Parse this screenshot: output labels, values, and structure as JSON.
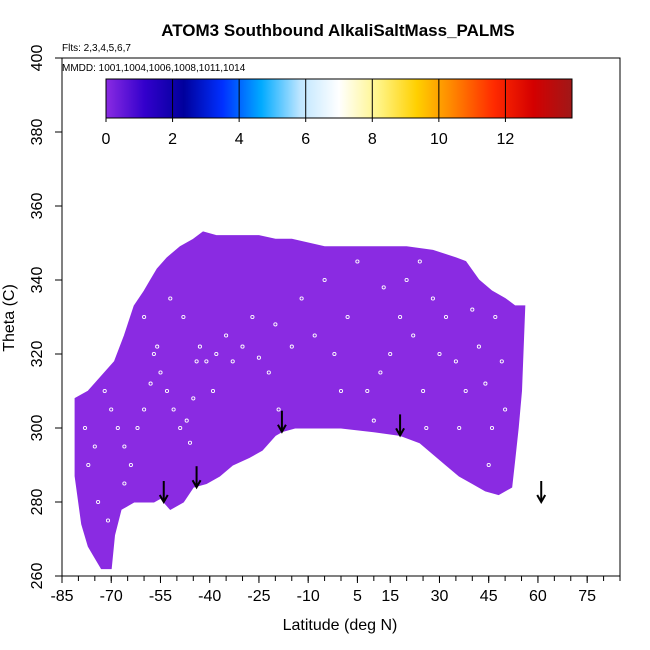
{
  "chart_data": {
    "type": "scatter",
    "title": "ATOM3 Southbound AlkaliSaltMass_PALMS",
    "flights_label": "Flts: 2,3,4,5,6,7",
    "mmdd_label": "MMDD: 1001,1004,1006,1008,1011,1014",
    "xlabel": "Latitude (deg N)",
    "ylabel": "Theta (C)",
    "xlim": [
      -85,
      85
    ],
    "ylim": [
      260,
      400
    ],
    "x_ticks": [
      -85,
      -70,
      -55,
      -40,
      -25,
      -10,
      5,
      15,
      30,
      45,
      60,
      75
    ],
    "x_tick_labels": [
      "-85",
      "-70",
      "-55",
      "-40",
      "-25",
      "-10",
      "5",
      "15",
      "30",
      "45",
      "60",
      "75"
    ],
    "y_ticks": [
      260,
      280,
      300,
      320,
      340,
      360,
      380,
      400
    ],
    "y_tick_labels": [
      "260",
      "280",
      "300",
      "320",
      "340",
      "360",
      "380",
      "400"
    ],
    "colorbar": {
      "range": [
        0,
        14
      ],
      "ticks": [
        0,
        2,
        4,
        6,
        8,
        10,
        12
      ],
      "tick_labels": [
        "0",
        "2",
        "4",
        "6",
        "8",
        "10",
        "12"
      ],
      "colors": [
        "#8a2be2",
        "#3300cc",
        "#00009c",
        "#0030ff",
        "#00aaff",
        "#bfe6ff",
        "#ffffff",
        "#fff58a",
        "#ffd000",
        "#ff7f00",
        "#ff2a00",
        "#d40000",
        "#a01818"
      ]
    },
    "field_color": "#8a2be2",
    "field_value_approx": 0,
    "coverage_outline": [
      [
        -81,
        308
      ],
      [
        -81,
        287
      ],
      [
        -79,
        274
      ],
      [
        -77,
        268
      ],
      [
        -75,
        265
      ],
      [
        -73,
        262
      ],
      [
        -70,
        262
      ],
      [
        -69,
        271
      ],
      [
        -67,
        278
      ],
      [
        -63,
        280
      ],
      [
        -57,
        280
      ],
      [
        -55,
        281
      ],
      [
        -52,
        278
      ],
      [
        -48,
        280
      ],
      [
        -45,
        284
      ],
      [
        -41,
        285
      ],
      [
        -37,
        287
      ],
      [
        -33,
        290
      ],
      [
        -28,
        292
      ],
      [
        -24,
        294
      ],
      [
        -20,
        298
      ],
      [
        -18,
        299
      ],
      [
        -14,
        300
      ],
      [
        -10,
        300
      ],
      [
        0,
        300
      ],
      [
        10,
        299
      ],
      [
        18,
        298
      ],
      [
        24,
        296
      ],
      [
        28,
        293
      ],
      [
        32,
        290
      ],
      [
        36,
        287
      ],
      [
        40,
        285
      ],
      [
        44,
        283
      ],
      [
        48,
        282
      ],
      [
        52,
        284
      ],
      [
        53,
        292
      ],
      [
        54,
        300
      ],
      [
        55,
        310
      ],
      [
        56,
        333
      ],
      [
        53,
        333
      ],
      [
        50,
        335
      ],
      [
        46,
        337
      ],
      [
        42,
        340
      ],
      [
        38,
        345
      ],
      [
        35,
        346
      ],
      [
        28,
        348
      ],
      [
        20,
        349
      ],
      [
        10,
        349
      ],
      [
        0,
        349
      ],
      [
        -5,
        349
      ],
      [
        -15,
        351
      ],
      [
        -20,
        351
      ],
      [
        -25,
        352
      ],
      [
        -30,
        352
      ],
      [
        -38,
        352
      ],
      [
        -42,
        353
      ],
      [
        -45,
        351
      ],
      [
        -49,
        349
      ],
      [
        -53,
        346
      ],
      [
        -56,
        343
      ],
      [
        -58,
        340
      ],
      [
        -60,
        337
      ],
      [
        -63,
        333
      ],
      [
        -66,
        325
      ],
      [
        -69,
        318
      ],
      [
        -73,
        314
      ],
      [
        -77,
        310
      ]
    ],
    "arrows": [
      {
        "lat": -54,
        "theta": 280
      },
      {
        "lat": -44,
        "theta": 284
      },
      {
        "lat": -18,
        "theta": 299
      },
      {
        "lat": 18,
        "theta": 298
      },
      {
        "lat": 61,
        "theta": 280
      }
    ],
    "sample_points": [
      [
        -78,
        300
      ],
      [
        -77,
        290
      ],
      [
        -75,
        295
      ],
      [
        -72,
        310
      ],
      [
        -70,
        305
      ],
      [
        -68,
        300
      ],
      [
        -66,
        295
      ],
      [
        -64,
        290
      ],
      [
        -62,
        300
      ],
      [
        -60,
        305
      ],
      [
        -58,
        312
      ],
      [
        -57,
        320
      ],
      [
        -55,
        315
      ],
      [
        -53,
        310
      ],
      [
        -51,
        305
      ],
      [
        -49,
        300
      ],
      [
        -47,
        302
      ],
      [
        -45,
        308
      ],
      [
        -43,
        322
      ],
      [
        -41,
        318
      ],
      [
        -38,
        320
      ],
      [
        -35,
        325
      ],
      [
        -30,
        322
      ],
      [
        -27,
        330
      ],
      [
        -25,
        319
      ],
      [
        -22,
        315
      ],
      [
        -19,
        305
      ],
      [
        -15,
        322
      ],
      [
        -12,
        335
      ],
      [
        -8,
        325
      ],
      [
        -5,
        340
      ],
      [
        -2,
        320
      ],
      [
        2,
        330
      ],
      [
        5,
        345
      ],
      [
        8,
        310
      ],
      [
        10,
        302
      ],
      [
        13,
        338
      ],
      [
        15,
        320
      ],
      [
        18,
        330
      ],
      [
        20,
        340
      ],
      [
        22,
        325
      ],
      [
        25,
        310
      ],
      [
        28,
        335
      ],
      [
        30,
        320
      ],
      [
        32,
        330
      ],
      [
        35,
        318
      ],
      [
        38,
        310
      ],
      [
        40,
        332
      ],
      [
        42,
        322
      ],
      [
        44,
        312
      ],
      [
        46,
        300
      ],
      [
        47,
        330
      ],
      [
        49,
        318
      ],
      [
        50,
        305
      ],
      [
        -60,
        330
      ],
      [
        -56,
        322
      ],
      [
        -52,
        335
      ],
      [
        -48,
        330
      ],
      [
        -44,
        318
      ],
      [
        -39,
        310
      ],
      [
        -33,
        318
      ],
      [
        -20,
        328
      ],
      [
        0,
        310
      ],
      [
        12,
        315
      ],
      [
        24,
        345
      ],
      [
        36,
        300
      ],
      [
        45,
        290
      ],
      [
        -74,
        280
      ],
      [
        -71,
        275
      ],
      [
        -66,
        285
      ],
      [
        -46,
        296
      ],
      [
        26,
        300
      ]
    ]
  }
}
